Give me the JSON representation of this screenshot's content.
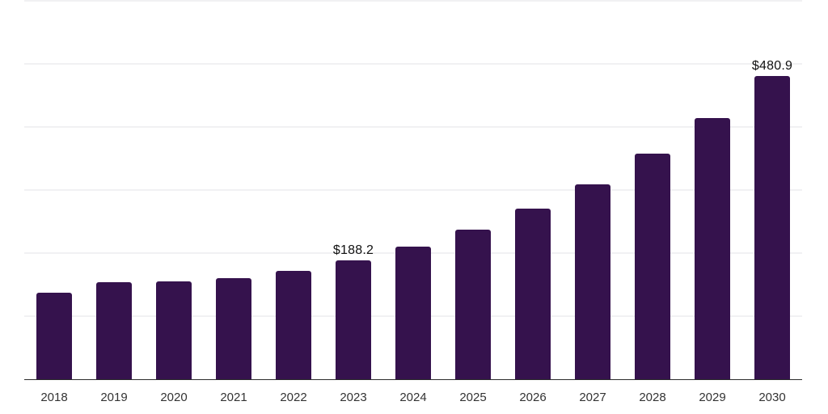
{
  "chart": {
    "background_color": "#ffffff",
    "bar_color": "#35124d",
    "grid_color": "#f1f1f3",
    "axis_line_color": "#2b2b2b",
    "data_label_color": "#111111",
    "tick_label_color": "#333333"
  },
  "chart_data": {
    "type": "bar",
    "title": "",
    "categories": [
      "2018",
      "2019",
      "2020",
      "2021",
      "2022",
      "2023",
      "2024",
      "2025",
      "2026",
      "2027",
      "2028",
      "2029",
      "2030"
    ],
    "values": [
      136.9,
      153.5,
      154.8,
      159.9,
      171.4,
      188.2,
      209.8,
      236.7,
      269.9,
      309.6,
      358.2,
      414.5,
      480.9
    ],
    "data_labels": {
      "2023": "$188.2",
      "2030": "$480.9"
    },
    "xlabel": "",
    "ylabel": "",
    "ylim": [
      0,
      600
    ],
    "grid_step": 100,
    "grid": true,
    "y_axis_tick_labels_visible": false,
    "legend_position": "none"
  }
}
